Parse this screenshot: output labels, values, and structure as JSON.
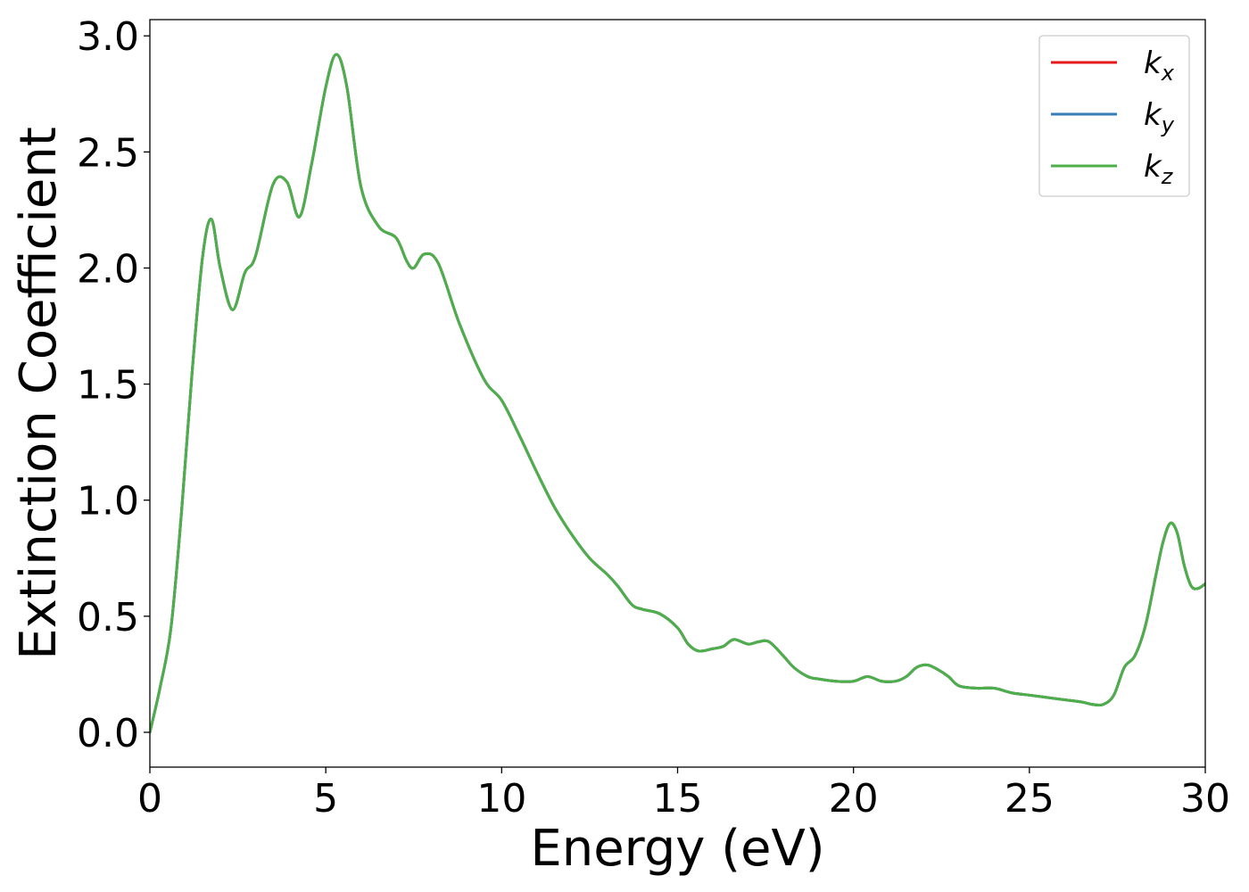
{
  "chart_data": {
    "type": "line",
    "title": "",
    "xlabel": "Energy (eV)",
    "ylabel": "Extinction Coefficient",
    "xlim": [
      0,
      30
    ],
    "ylim": [
      -0.15,
      3.07
    ],
    "xticks": [
      0,
      5,
      10,
      15,
      20,
      25,
      30
    ],
    "xtick_labels": [
      "0",
      "5",
      "10",
      "15",
      "20",
      "25",
      "30"
    ],
    "yticks": [
      0.0,
      0.5,
      1.0,
      1.5,
      2.0,
      2.5,
      3.0
    ],
    "ytick_labels": [
      "0.0",
      "0.5",
      "1.0",
      "1.5",
      "2.0",
      "2.5",
      "3.0"
    ],
    "grid": false,
    "legend_position": "top-right",
    "x": [
      0,
      0.3,
      0.6,
      0.9,
      1.2,
      1.5,
      1.75,
      2.0,
      2.35,
      2.7,
      3.0,
      3.5,
      3.9,
      4.25,
      4.6,
      5.0,
      5.3,
      5.6,
      6.0,
      6.5,
      7.0,
      7.3,
      7.5,
      7.8,
      8.2,
      8.8,
      9.5,
      10.0,
      10.5,
      11.0,
      11.5,
      12.0,
      12.5,
      13.0,
      13.3,
      13.7,
      14.0,
      14.5,
      15.0,
      15.3,
      15.6,
      16.0,
      16.3,
      16.6,
      17.0,
      17.3,
      17.6,
      18.0,
      18.3,
      18.7,
      19.0,
      19.5,
      20.0,
      20.4,
      20.8,
      21.2,
      21.5,
      21.8,
      22.1,
      22.4,
      22.7,
      23.0,
      23.5,
      24.0,
      24.5,
      25.0,
      25.5,
      26.0,
      26.5,
      26.8,
      27.1,
      27.4,
      27.7,
      28.0,
      28.3,
      28.6,
      28.8,
      29.0,
      29.2,
      29.4,
      29.6,
      29.8,
      30.0
    ],
    "series": [
      {
        "name": "k_x",
        "color": "#e41a1c",
        "values": [
          0.0,
          0.2,
          0.45,
          0.95,
          1.55,
          2.05,
          2.21,
          2.0,
          1.82,
          1.98,
          2.05,
          2.36,
          2.37,
          2.22,
          2.45,
          2.78,
          2.92,
          2.78,
          2.35,
          2.18,
          2.13,
          2.03,
          2.0,
          2.06,
          2.02,
          1.76,
          1.52,
          1.43,
          1.28,
          1.12,
          0.97,
          0.85,
          0.75,
          0.68,
          0.63,
          0.55,
          0.53,
          0.51,
          0.45,
          0.38,
          0.35,
          0.36,
          0.37,
          0.4,
          0.38,
          0.39,
          0.39,
          0.33,
          0.28,
          0.24,
          0.23,
          0.22,
          0.22,
          0.24,
          0.22,
          0.22,
          0.24,
          0.28,
          0.29,
          0.27,
          0.24,
          0.2,
          0.19,
          0.19,
          0.17,
          0.16,
          0.15,
          0.14,
          0.13,
          0.12,
          0.12,
          0.16,
          0.28,
          0.33,
          0.46,
          0.68,
          0.82,
          0.9,
          0.86,
          0.72,
          0.63,
          0.62,
          0.64
        ]
      },
      {
        "name": "k_y",
        "color": "#377eb8",
        "values": [
          0.0,
          0.2,
          0.45,
          0.95,
          1.55,
          2.05,
          2.21,
          2.0,
          1.82,
          1.98,
          2.05,
          2.36,
          2.37,
          2.22,
          2.45,
          2.78,
          2.92,
          2.78,
          2.35,
          2.18,
          2.13,
          2.03,
          2.0,
          2.06,
          2.02,
          1.76,
          1.52,
          1.43,
          1.28,
          1.12,
          0.97,
          0.85,
          0.75,
          0.68,
          0.63,
          0.55,
          0.53,
          0.51,
          0.45,
          0.38,
          0.35,
          0.36,
          0.37,
          0.4,
          0.38,
          0.39,
          0.39,
          0.33,
          0.28,
          0.24,
          0.23,
          0.22,
          0.22,
          0.24,
          0.22,
          0.22,
          0.24,
          0.28,
          0.29,
          0.27,
          0.24,
          0.2,
          0.19,
          0.19,
          0.17,
          0.16,
          0.15,
          0.14,
          0.13,
          0.12,
          0.12,
          0.16,
          0.28,
          0.33,
          0.46,
          0.68,
          0.82,
          0.9,
          0.86,
          0.72,
          0.63,
          0.62,
          0.64
        ]
      },
      {
        "name": "k_z",
        "color": "#4daf4a",
        "values": [
          0.0,
          0.2,
          0.45,
          0.95,
          1.55,
          2.05,
          2.21,
          2.0,
          1.82,
          1.98,
          2.05,
          2.36,
          2.37,
          2.22,
          2.45,
          2.78,
          2.92,
          2.78,
          2.35,
          2.18,
          2.13,
          2.03,
          2.0,
          2.06,
          2.02,
          1.76,
          1.52,
          1.43,
          1.28,
          1.12,
          0.97,
          0.85,
          0.75,
          0.68,
          0.63,
          0.55,
          0.53,
          0.51,
          0.45,
          0.38,
          0.35,
          0.36,
          0.37,
          0.4,
          0.38,
          0.39,
          0.39,
          0.33,
          0.28,
          0.24,
          0.23,
          0.22,
          0.22,
          0.24,
          0.22,
          0.22,
          0.24,
          0.28,
          0.29,
          0.27,
          0.24,
          0.2,
          0.19,
          0.19,
          0.17,
          0.16,
          0.15,
          0.14,
          0.13,
          0.12,
          0.12,
          0.16,
          0.28,
          0.33,
          0.46,
          0.68,
          0.82,
          0.9,
          0.86,
          0.72,
          0.63,
          0.62,
          0.64
        ]
      }
    ],
    "legend": [
      {
        "base": "k",
        "sub": "x"
      },
      {
        "base": "k",
        "sub": "y"
      },
      {
        "base": "k",
        "sub": "z"
      }
    ]
  }
}
